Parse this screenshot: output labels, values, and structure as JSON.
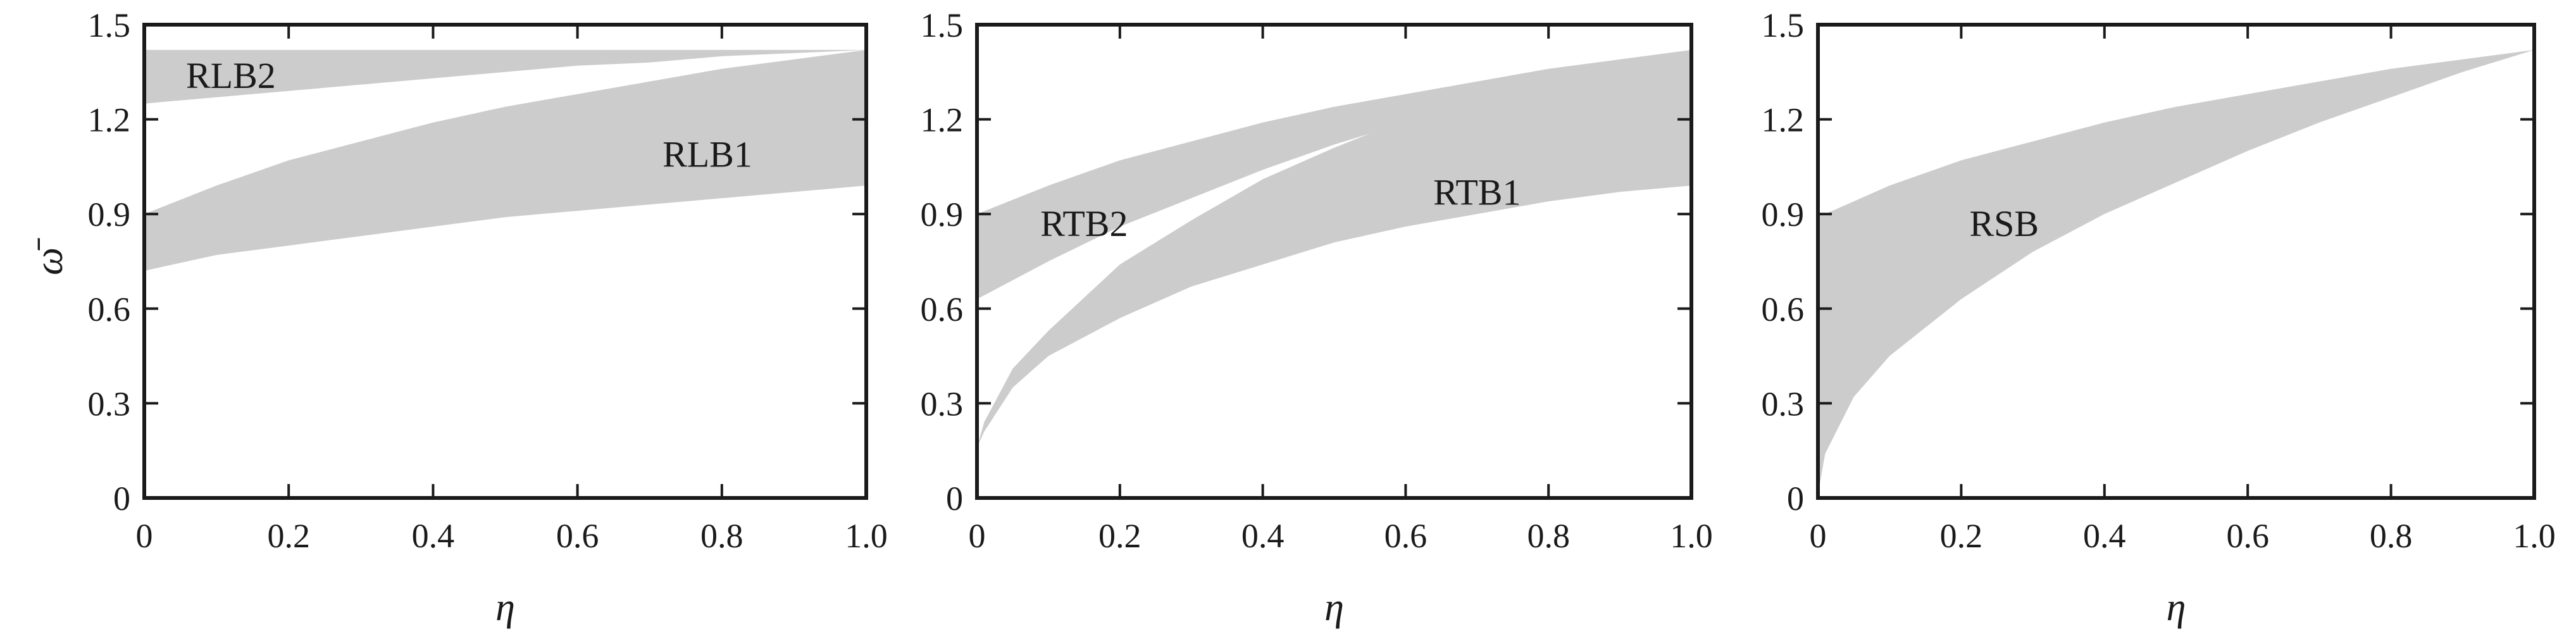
{
  "chart_data": [
    {
      "type": "area",
      "xlabel": "η",
      "ylabel": "ω̄",
      "xlim": [
        0,
        1
      ],
      "ylim": [
        0,
        1.5
      ],
      "xticks": [
        0,
        0.2,
        0.4,
        0.6,
        0.8,
        1.0
      ],
      "xtick_labels": [
        "0",
        "0.2",
        "0.4",
        "0.6",
        "0.8",
        "1.0"
      ],
      "yticks": [
        0,
        0.3,
        0.6,
        0.9,
        1.2,
        1.5
      ],
      "ytick_labels": [
        "0",
        "0.3",
        "0.6",
        "0.9",
        "1.2",
        "1.5"
      ],
      "grid": false,
      "fill_color": "#cccccc",
      "bands": [
        {
          "name": "RLB2",
          "label_at": [
            0.12,
            1.34
          ],
          "x": [
            0,
            0.1,
            0.2,
            0.3,
            0.4,
            0.5,
            0.6,
            0.7,
            0.8,
            0.9,
            1.0
          ],
          "y_lower": [
            1.25,
            1.27,
            1.29,
            1.31,
            1.33,
            1.35,
            1.37,
            1.38,
            1.4,
            1.41,
            1.42
          ],
          "y_upper": [
            1.42,
            1.42,
            1.42,
            1.42,
            1.42,
            1.42,
            1.42,
            1.42,
            1.42,
            1.42,
            1.42
          ]
        },
        {
          "name": "RLB1",
          "label_at": [
            0.78,
            1.09
          ],
          "x": [
            0,
            0.1,
            0.2,
            0.3,
            0.4,
            0.5,
            0.6,
            0.7,
            0.8,
            0.9,
            1.0
          ],
          "y_lower": [
            0.72,
            0.77,
            0.8,
            0.83,
            0.86,
            0.89,
            0.91,
            0.93,
            0.95,
            0.97,
            0.99
          ],
          "y_upper": [
            0.9,
            0.99,
            1.07,
            1.13,
            1.19,
            1.24,
            1.28,
            1.32,
            1.36,
            1.39,
            1.42
          ]
        }
      ]
    },
    {
      "type": "area",
      "xlabel": "η",
      "ylabel": "",
      "xlim": [
        0,
        1
      ],
      "ylim": [
        0,
        1.5
      ],
      "xticks": [
        0,
        0.2,
        0.4,
        0.6,
        0.8,
        1.0
      ],
      "xtick_labels": [
        "0",
        "0.2",
        "0.4",
        "0.6",
        "0.8",
        "1.0"
      ],
      "yticks": [
        0,
        0.3,
        0.6,
        0.9,
        1.2,
        1.5
      ],
      "ytick_labels": [
        "0",
        "0.3",
        "0.6",
        "0.9",
        "1.2",
        "1.5"
      ],
      "grid": false,
      "fill_color": "#cccccc",
      "bands": [
        {
          "name": "RTB2",
          "label_at": [
            0.15,
            0.87
          ],
          "x": [
            0,
            0.1,
            0.2,
            0.3,
            0.4,
            0.5,
            0.6,
            0.7,
            0.8,
            0.9,
            1.0
          ],
          "y_lower": [
            0.63,
            0.75,
            0.86,
            0.95,
            1.04,
            1.12,
            1.19,
            1.25,
            1.31,
            1.37,
            1.42
          ],
          "y_upper": [
            0.9,
            0.99,
            1.07,
            1.13,
            1.19,
            1.24,
            1.28,
            1.32,
            1.36,
            1.39,
            1.42
          ]
        },
        {
          "name": "RTB1",
          "label_at": [
            0.7,
            0.97
          ],
          "x": [
            0,
            0.01,
            0.05,
            0.1,
            0.2,
            0.3,
            0.4,
            0.5,
            0.6,
            0.7,
            0.8,
            0.9,
            1.0
          ],
          "y_lower": [
            0.16,
            0.21,
            0.35,
            0.45,
            0.57,
            0.67,
            0.74,
            0.81,
            0.86,
            0.9,
            0.94,
            0.97,
            0.99
          ],
          "y_upper": [
            0.16,
            0.24,
            0.41,
            0.53,
            0.74,
            0.88,
            1.01,
            1.11,
            1.2,
            1.28,
            1.35,
            1.39,
            1.42
          ]
        }
      ]
    },
    {
      "type": "area",
      "xlabel": "η",
      "ylabel": "",
      "xlim": [
        0,
        1
      ],
      "ylim": [
        0,
        1.5
      ],
      "xticks": [
        0,
        0.2,
        0.4,
        0.6,
        0.8,
        1.0
      ],
      "xtick_labels": [
        "0",
        "0.2",
        "0.4",
        "0.6",
        "0.8",
        "1.0"
      ],
      "yticks": [
        0,
        0.3,
        0.6,
        0.9,
        1.2,
        1.5
      ],
      "ytick_labels": [
        "0",
        "0.3",
        "0.6",
        "0.9",
        "1.2",
        "1.5"
      ],
      "grid": false,
      "fill_color": "#cccccc",
      "bands": [
        {
          "name": "RSB",
          "label_at": [
            0.26,
            0.87
          ],
          "x": [
            0,
            0.01,
            0.05,
            0.1,
            0.2,
            0.3,
            0.4,
            0.5,
            0.6,
            0.7,
            0.8,
            0.9,
            1.0
          ],
          "y_lower": [
            0.01,
            0.14,
            0.32,
            0.45,
            0.63,
            0.78,
            0.9,
            1.0,
            1.1,
            1.19,
            1.27,
            1.35,
            1.42
          ],
          "y_upper": [
            0.9,
            0.9,
            0.94,
            0.99,
            1.07,
            1.13,
            1.19,
            1.24,
            1.28,
            1.32,
            1.36,
            1.39,
            1.42
          ]
        }
      ]
    }
  ]
}
